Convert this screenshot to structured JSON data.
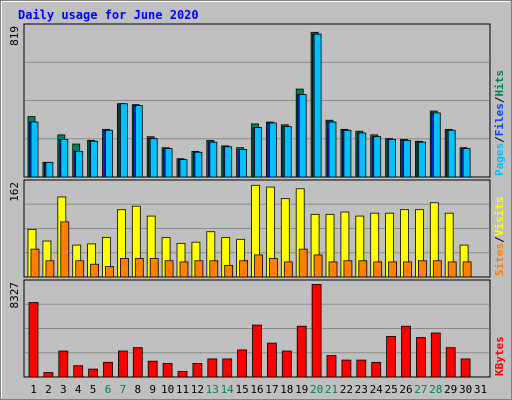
{
  "title": "Daily usage for June 2020",
  "colors": {
    "background": "#c0c0c0",
    "plot": "#c0c0c0",
    "grid": "#8c8c8c",
    "title": "#0000ff",
    "hits": "#00805a",
    "files": "#0040ff",
    "pages": "#00c0ff",
    "visits": "#ffff00",
    "sites": "#ff8000",
    "kbytes": "#ff0000",
    "weekend_day": "#00805a",
    "weekday": "#000000"
  },
  "legend": {
    "top": {
      "pages": "Pages",
      "files": "Files",
      "hits": "Hits",
      "sep": "/"
    },
    "middle": {
      "sites": "Sites",
      "visits": "Visits",
      "sep": "/"
    },
    "bottom": {
      "kbytes": "KBytes"
    }
  },
  "chart_data": [
    {
      "type": "bar",
      "panel": "hits-files-pages",
      "ymax_label": "819",
      "ylim": [
        0,
        819
      ],
      "categories": [
        "1",
        "2",
        "3",
        "4",
        "5",
        "6",
        "7",
        "8",
        "9",
        "10",
        "11",
        "12",
        "13",
        "14",
        "15",
        "16",
        "17",
        "18",
        "19",
        "20",
        "21",
        "22",
        "23",
        "24",
        "25",
        "26",
        "27",
        "28",
        "29",
        "30",
        "31"
      ],
      "weekend": [
        "6",
        "7",
        "13",
        "14",
        "20",
        "21",
        "27",
        "28"
      ],
      "series": [
        {
          "name": "Hits",
          "values": [
            330,
            80,
            230,
            180,
            200,
            260,
            400,
            395,
            220,
            160,
            100,
            140,
            200,
            170,
            160,
            290,
            300,
            285,
            480,
            790,
            310,
            260,
            250,
            230,
            210,
            205,
            195,
            360,
            260,
            160,
            0
          ]
        },
        {
          "name": "Files",
          "values": [
            300,
            80,
            205,
            140,
            195,
            255,
            400,
            390,
            210,
            155,
            95,
            135,
            190,
            165,
            150,
            270,
            295,
            275,
            450,
            780,
            300,
            255,
            240,
            220,
            205,
            200,
            190,
            350,
            255,
            155,
            0
          ]
        },
        {
          "name": "Pages",
          "values": [
            300,
            80,
            205,
            140,
            195,
            255,
            400,
            390,
            210,
            155,
            95,
            135,
            190,
            165,
            150,
            270,
            295,
            275,
            450,
            780,
            300,
            255,
            240,
            220,
            205,
            200,
            190,
            350,
            255,
            155,
            0
          ]
        }
      ]
    },
    {
      "type": "bar",
      "panel": "visits-sites",
      "ymax_label": "162",
      "ylim": [
        0,
        162
      ],
      "series": [
        {
          "name": "Visits",
          "values": [
            82,
            62,
            138,
            55,
            57,
            68,
            116,
            122,
            105,
            68,
            58,
            60,
            78,
            68,
            65,
            158,
            155,
            135,
            152,
            108,
            108,
            112,
            105,
            110,
            110,
            116,
            116,
            128,
            110,
            55,
            0
          ]
        },
        {
          "name": "Sites",
          "values": [
            48,
            28,
            95,
            28,
            22,
            18,
            32,
            32,
            32,
            28,
            26,
            28,
            28,
            20,
            28,
            38,
            32,
            26,
            48,
            38,
            26,
            28,
            28,
            26,
            26,
            26,
            28,
            28,
            26,
            26,
            0
          ]
        }
      ]
    },
    {
      "type": "bar",
      "panel": "kbytes",
      "ymax_label": "8327",
      "ylim": [
        0,
        8327
      ],
      "series": [
        {
          "name": "KBytes",
          "values": [
            6600,
            400,
            2300,
            1000,
            700,
            1300,
            2300,
            2600,
            1400,
            1200,
            500,
            1200,
            1600,
            1600,
            2400,
            4600,
            3000,
            2300,
            4500,
            8200,
            1900,
            1500,
            1500,
            1300,
            3600,
            4500,
            3500,
            3900,
            2600,
            1600,
            0
          ]
        }
      ]
    }
  ]
}
